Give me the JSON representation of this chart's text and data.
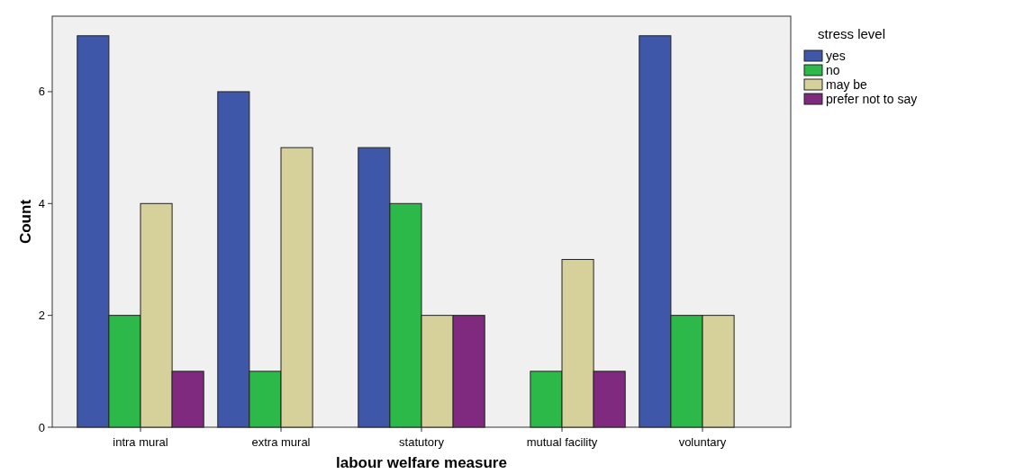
{
  "chart_data": {
    "type": "bar",
    "xlabel": "labour welfare measure",
    "ylabel": "Count",
    "legend_title": "stress level",
    "legend": "top right",
    "grid": false,
    "categories": [
      "intra mural",
      "extra mural",
      "statutory",
      "mutual facility",
      "voluntary"
    ],
    "ylim": [
      0,
      7.35
    ],
    "yticks": [
      0,
      2,
      4,
      6
    ],
    "series": [
      {
        "name": "yes",
        "color": "#3f57a8",
        "values": [
          7,
          6,
          5,
          null,
          7
        ]
      },
      {
        "name": "no",
        "color": "#2db84a",
        "values": [
          2,
          1,
          4,
          1,
          2
        ]
      },
      {
        "name": "may be",
        "color": "#d6d09a",
        "values": [
          4,
          5,
          2,
          3,
          2
        ]
      },
      {
        "name": "prefer not to say",
        "color": "#7f2a7f",
        "values": [
          1,
          null,
          2,
          1,
          null
        ]
      }
    ]
  }
}
